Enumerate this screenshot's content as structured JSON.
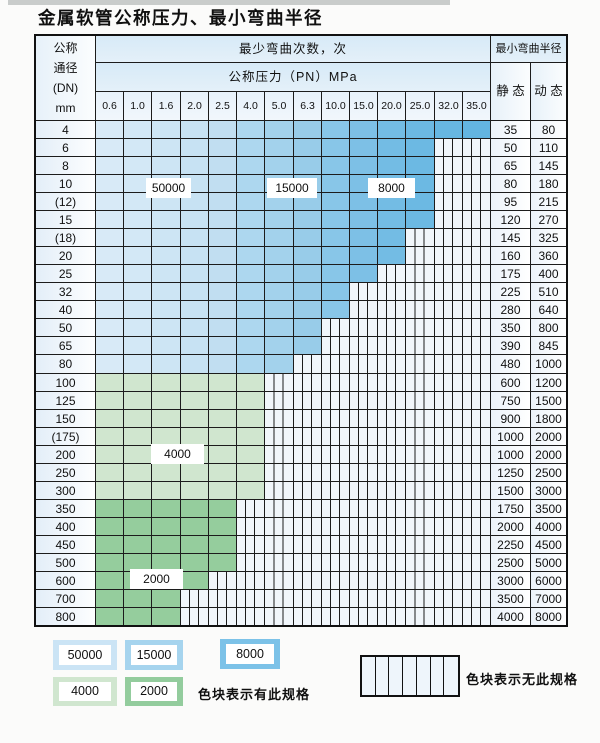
{
  "title": "金属软管公称压力、最小弯曲半径",
  "table": {
    "dn_header_lines": [
      "公称",
      "通径",
      "(DN)",
      "mm"
    ],
    "bend_cycles_header": "最少弯曲次数，次",
    "pressure_header": "公称压力（PN）MPa",
    "radius_header": "最小弯曲半径",
    "static_header": "静 态",
    "dynamic_header": "动 态",
    "pressure_columns": [
      "0.6",
      "1.0",
      "1.6",
      "2.0",
      "2.5",
      "4.0",
      "5.0",
      "6.3",
      "10.0",
      "15.0",
      "20.0",
      "25.0",
      "32.0",
      "35.0"
    ],
    "rows": [
      {
        "dn": "4",
        "colored_cols": 14,
        "band": "blue",
        "static": "35",
        "dynamic": "80"
      },
      {
        "dn": "6",
        "colored_cols": 12,
        "band": "blue",
        "static": "50",
        "dynamic": "110"
      },
      {
        "dn": "8",
        "colored_cols": 12,
        "band": "blue",
        "static": "65",
        "dynamic": "145"
      },
      {
        "dn": "10",
        "colored_cols": 12,
        "band": "blue",
        "static": "80",
        "dynamic": "180"
      },
      {
        "dn": "(12)",
        "colored_cols": 12,
        "band": "blue",
        "static": "95",
        "dynamic": "215"
      },
      {
        "dn": "15",
        "colored_cols": 12,
        "band": "blue",
        "static": "120",
        "dynamic": "270"
      },
      {
        "dn": "(18)",
        "colored_cols": 11,
        "band": "blue",
        "static": "145",
        "dynamic": "325"
      },
      {
        "dn": "20",
        "colored_cols": 11,
        "band": "blue",
        "static": "160",
        "dynamic": "360"
      },
      {
        "dn": "25",
        "colored_cols": 10,
        "band": "blue",
        "static": "175",
        "dynamic": "400"
      },
      {
        "dn": "32",
        "colored_cols": 9,
        "band": "blue",
        "static": "225",
        "dynamic": "510"
      },
      {
        "dn": "40",
        "colored_cols": 9,
        "band": "blue",
        "static": "280",
        "dynamic": "640"
      },
      {
        "dn": "50",
        "colored_cols": 8,
        "band": "blue",
        "static": "350",
        "dynamic": "800"
      },
      {
        "dn": "65",
        "colored_cols": 8,
        "band": "blue",
        "static": "390",
        "dynamic": "845"
      },
      {
        "dn": "80",
        "colored_cols": 7,
        "band": "blue",
        "static": "480",
        "dynamic": "1000"
      },
      {
        "dn": "100",
        "colored_cols": 6,
        "band": "green_light",
        "static": "600",
        "dynamic": "1200"
      },
      {
        "dn": "125",
        "colored_cols": 6,
        "band": "green_light",
        "static": "750",
        "dynamic": "1500"
      },
      {
        "dn": "150",
        "colored_cols": 6,
        "band": "green_light",
        "static": "900",
        "dynamic": "1800"
      },
      {
        "dn": "(175)",
        "colored_cols": 6,
        "band": "green_light",
        "static": "1000",
        "dynamic": "2000"
      },
      {
        "dn": "200",
        "colored_cols": 6,
        "band": "green_light",
        "static": "1000",
        "dynamic": "2000"
      },
      {
        "dn": "250",
        "colored_cols": 6,
        "band": "green_light",
        "static": "1250",
        "dynamic": "2500"
      },
      {
        "dn": "300",
        "colored_cols": 6,
        "band": "green_light",
        "static": "1500",
        "dynamic": "3000"
      },
      {
        "dn": "350",
        "colored_cols": 5,
        "band": "green_dark",
        "static": "1750",
        "dynamic": "3500"
      },
      {
        "dn": "400",
        "colored_cols": 5,
        "band": "green_dark",
        "static": "2000",
        "dynamic": "4000"
      },
      {
        "dn": "450",
        "colored_cols": 5,
        "band": "green_dark",
        "static": "2250",
        "dynamic": "4500"
      },
      {
        "dn": "500",
        "colored_cols": 5,
        "band": "green_dark",
        "static": "2500",
        "dynamic": "5000"
      },
      {
        "dn": "600",
        "colored_cols": 4,
        "band": "green_dark",
        "static": "3000",
        "dynamic": "6000"
      },
      {
        "dn": "700",
        "colored_cols": 3,
        "band": "green_dark",
        "static": "3500",
        "dynamic": "7000"
      },
      {
        "dn": "800",
        "colored_cols": 3,
        "band": "green_dark",
        "static": "4000",
        "dynamic": "8000"
      }
    ]
  },
  "overlay_labels": [
    "50000",
    "15000",
    "8000",
    "4000",
    "2000"
  ],
  "legend": {
    "items": [
      {
        "label": "50000",
        "color": "#cbe4f5"
      },
      {
        "label": "15000",
        "color": "#a6d4ee"
      },
      {
        "label": "8000",
        "color": "#7cc2e8"
      },
      {
        "label": "4000",
        "color": "#d0e6cf"
      },
      {
        "label": "2000",
        "color": "#93cc9d"
      }
    ],
    "has_spec_text": "色块表示有此规格",
    "no_spec_text": "色块表示无此规格"
  },
  "colors": {
    "blue_columns": [
      "#d8eaf7",
      "#d3e8f6",
      "#cde5f4",
      "#c7e2f3",
      "#c1def1",
      "#add7ef",
      "#a3d2ec",
      "#98cce9",
      "#88c6e8",
      "#7dc0e6",
      "#73bce4",
      "#6cb9e3",
      "#67b7e2",
      "#63b5e1"
    ],
    "green_light": "#d0e6cf",
    "green_dark": "#95cd9d",
    "striped_bg": "#f1f6fb",
    "grid_line": "#1c1c1c"
  }
}
